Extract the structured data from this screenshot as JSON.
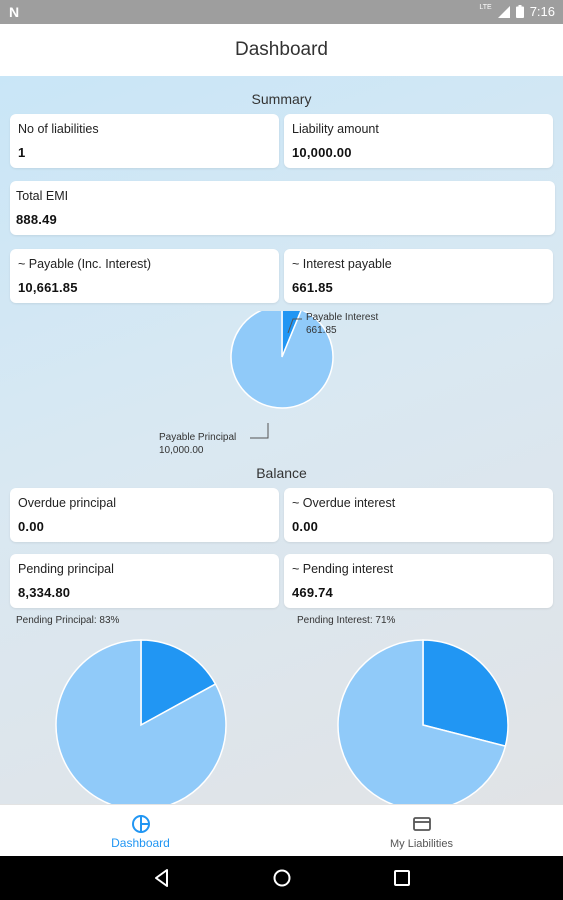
{
  "status_bar": {
    "time": "7:16",
    "network": "LTE"
  },
  "app_bar": {
    "title": "Dashboard"
  },
  "summary": {
    "title": "Summary",
    "no_of_liabilities": {
      "label": "No of liabilities",
      "value": "1"
    },
    "liability_amount": {
      "label": "Liability amount",
      "value": "10,000.00"
    },
    "total_emi": {
      "label": "Total EMI",
      "value": "888.49"
    },
    "payable_inc_interest": {
      "label": "~ Payable (Inc. Interest)",
      "value": "10,661.85"
    },
    "interest_payable": {
      "label": "~ Interest payable",
      "value": "661.85"
    }
  },
  "balance": {
    "title": "Balance",
    "overdue_principal": {
      "label": "Overdue principal",
      "value": "0.00"
    },
    "overdue_interest": {
      "label": "~ Overdue interest",
      "value": "0.00"
    },
    "pending_principal": {
      "label": "Pending principal",
      "value": "8,334.80"
    },
    "pending_interest": {
      "label": "~ Pending interest",
      "value": "469.74"
    }
  },
  "chart_data": [
    {
      "type": "pie",
      "slices": [
        {
          "label": "Payable Interest",
          "value_label": "661.85",
          "value": 661.85,
          "color": "#2196f3"
        },
        {
          "label": "Payable Principal",
          "value_label": "10,000.00",
          "value": 10000.0,
          "color": "#90caf9"
        }
      ]
    },
    {
      "type": "pie",
      "title": "Pending Principal: 83%",
      "slices": [
        {
          "value": 17,
          "color": "#2196f3"
        },
        {
          "value": 83,
          "color": "#90caf9"
        }
      ]
    },
    {
      "type": "pie",
      "title": "Pending Interest: 71%",
      "slices": [
        {
          "value": 29,
          "color": "#2196f3"
        },
        {
          "value": 71,
          "color": "#90caf9"
        }
      ]
    }
  ],
  "bottom_nav": {
    "items": [
      {
        "label": "Dashboard",
        "icon": "pie-chart-icon",
        "active": true
      },
      {
        "label": "My Liabilities",
        "icon": "credit-card-icon",
        "active": false
      }
    ]
  },
  "colors": {
    "accent": "#2196f3",
    "light_slice": "#90caf9",
    "dark_slice": "#2196f3"
  }
}
